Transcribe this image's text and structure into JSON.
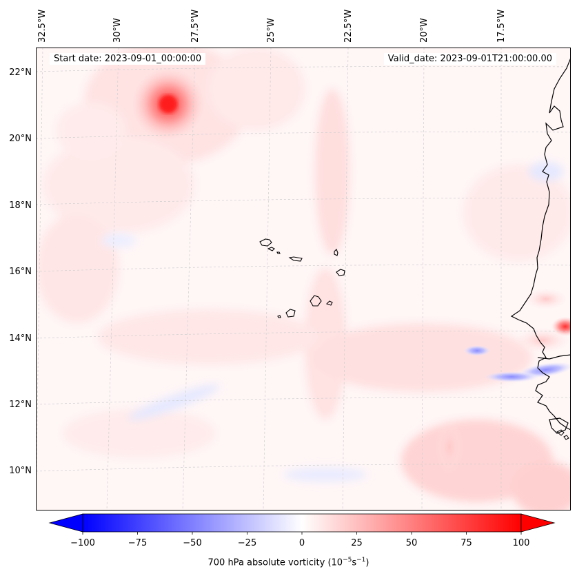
{
  "header": {
    "start_date": "Start date: 2023-09-01_00:00:00",
    "valid_date": "Valid_date: 2023-09-01T21:00:00.00"
  },
  "axes": {
    "longitude_labels": [
      "32.5°W",
      "30°W",
      "27.5°W",
      "25°W",
      "22.5°W",
      "20°W",
      "17.5°W"
    ],
    "latitude_labels": [
      "22°N",
      "20°N",
      "18°N",
      "16°N",
      "14°N",
      "12°N",
      "10°N"
    ]
  },
  "colorbar": {
    "label_prefix": "700 hPa absolute vorticity (10",
    "label_exp1": "−5",
    "label_mid": "s",
    "label_exp2": "−1",
    "label_suffix": ")",
    "ticks": [
      "−100",
      "−75",
      "−50",
      "−25",
      "0",
      "25",
      "50",
      "75",
      "100"
    ],
    "min": -100,
    "max": 100,
    "colors": {
      "negative": "#0000ff",
      "neutral": "#ffffff",
      "positive": "#ff0000"
    }
  },
  "map": {
    "features": [
      "coastline",
      "cape-verde-islands",
      "gridlines"
    ],
    "colors": {
      "coastline": "#000000",
      "grid": "#c8c8c8"
    }
  }
}
